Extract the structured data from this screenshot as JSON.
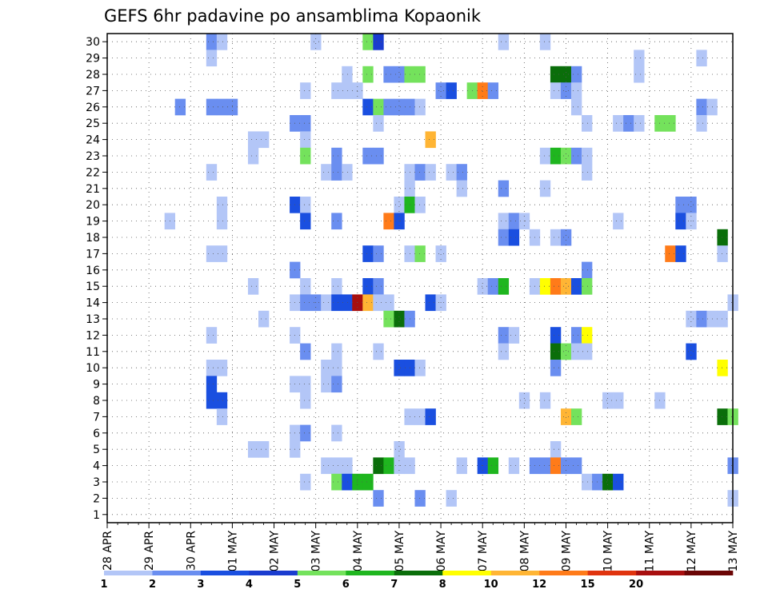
{
  "chart_data": {
    "type": "heatmap",
    "title": "GEFS 6hr padavine po ansamblima Kopaonik",
    "xlabel": "",
    "ylabel": "",
    "x_tick_labels": [
      "28 APR",
      "29 APR",
      "30 APR",
      "01 MAY",
      "02 MAY",
      "03 MAY",
      "04 MAY",
      "05 MAY",
      "06 MAY",
      "07 MAY",
      "08 MAY",
      "09 MAY",
      "10 MAY",
      "11 MAY",
      "12 MAY",
      "13 MAY"
    ],
    "y_tick_labels": [
      "1",
      "2",
      "3",
      "4",
      "5",
      "6",
      "7",
      "8",
      "9",
      "10",
      "11",
      "12",
      "13",
      "14",
      "15",
      "16",
      "17",
      "18",
      "19",
      "20",
      "21",
      "22",
      "23",
      "24",
      "25",
      "26",
      "27",
      "28",
      "29",
      "30"
    ],
    "xlim_steps": [
      0,
      60
    ],
    "ylim": [
      0.5,
      30.5
    ],
    "grid": true,
    "time_step_hours": 6,
    "colorbar": {
      "labels": [
        "1",
        "2",
        "3",
        "4",
        "5",
        "6",
        "7",
        "8",
        "10",
        "12",
        "15",
        "20"
      ],
      "colors": [
        "#b3c6f7",
        "#6a8ef0",
        "#1a4fe0",
        "#1a3ccf",
        "#74e25c",
        "#1fb61f",
        "#0a6e0a",
        "#ffff00",
        "#ffb534",
        "#ff7b19",
        "#e0340f",
        "#a80f0f",
        "#6b0505"
      ]
    },
    "cells": [
      [
        10,
        30,
        2
      ],
      [
        11,
        30,
        1
      ],
      [
        20,
        30,
        1
      ],
      [
        25,
        30,
        5
      ],
      [
        26,
        30,
        4
      ],
      [
        38,
        30,
        1
      ],
      [
        42,
        30,
        1
      ],
      [
        10,
        29,
        1
      ],
      [
        51,
        29,
        1
      ],
      [
        57,
        29,
        1
      ],
      [
        23,
        28,
        1
      ],
      [
        25,
        28,
        5
      ],
      [
        27,
        28,
        2
      ],
      [
        28,
        28,
        2
      ],
      [
        29,
        28,
        5
      ],
      [
        30,
        28,
        5
      ],
      [
        43,
        28,
        7
      ],
      [
        44,
        28,
        7
      ],
      [
        45,
        28,
        2
      ],
      [
        51,
        28,
        1
      ],
      [
        19,
        27,
        1
      ],
      [
        22,
        27,
        1
      ],
      [
        23,
        27,
        1
      ],
      [
        24,
        27,
        1
      ],
      [
        32,
        27,
        2
      ],
      [
        33,
        27,
        3
      ],
      [
        35,
        27,
        5
      ],
      [
        36,
        27,
        10
      ],
      [
        37,
        27,
        2
      ],
      [
        43,
        27,
        1
      ],
      [
        44,
        27,
        2
      ],
      [
        45,
        27,
        1
      ],
      [
        7,
        26,
        2
      ],
      [
        10,
        26,
        2
      ],
      [
        11,
        26,
        2
      ],
      [
        12,
        26,
        2
      ],
      [
        25,
        26,
        3
      ],
      [
        26,
        26,
        5
      ],
      [
        27,
        26,
        2
      ],
      [
        28,
        26,
        2
      ],
      [
        29,
        26,
        2
      ],
      [
        30,
        26,
        1
      ],
      [
        45,
        26,
        1
      ],
      [
        57,
        26,
        2
      ],
      [
        58,
        26,
        1
      ],
      [
        18,
        25,
        2
      ],
      [
        19,
        25,
        2
      ],
      [
        26,
        25,
        1
      ],
      [
        46,
        25,
        1
      ],
      [
        49,
        25,
        1
      ],
      [
        50,
        25,
        2
      ],
      [
        51,
        25,
        1
      ],
      [
        53,
        25,
        5
      ],
      [
        54,
        25,
        5
      ],
      [
        57,
        25,
        1
      ],
      [
        14,
        24,
        1
      ],
      [
        15,
        24,
        1
      ],
      [
        19,
        24,
        1
      ],
      [
        31,
        24,
        9
      ],
      [
        14,
        23,
        1
      ],
      [
        19,
        23,
        5
      ],
      [
        22,
        23,
        2
      ],
      [
        25,
        23,
        2
      ],
      [
        26,
        23,
        2
      ],
      [
        42,
        23,
        1
      ],
      [
        43,
        23,
        6
      ],
      [
        44,
        23,
        5
      ],
      [
        45,
        23,
        2
      ],
      [
        46,
        23,
        1
      ],
      [
        10,
        22,
        1
      ],
      [
        21,
        22,
        1
      ],
      [
        22,
        22,
        2
      ],
      [
        23,
        22,
        1
      ],
      [
        29,
        22,
        1
      ],
      [
        30,
        22,
        2
      ],
      [
        31,
        22,
        1
      ],
      [
        33,
        22,
        1
      ],
      [
        34,
        22,
        2
      ],
      [
        46,
        22,
        1
      ],
      [
        29,
        21,
        1
      ],
      [
        34,
        21,
        1
      ],
      [
        38,
        21,
        2
      ],
      [
        42,
        21,
        1
      ],
      [
        11,
        20,
        1
      ],
      [
        18,
        20,
        3
      ],
      [
        19,
        20,
        1
      ],
      [
        28,
        20,
        1
      ],
      [
        29,
        20,
        6
      ],
      [
        30,
        20,
        1
      ],
      [
        55,
        20,
        2
      ],
      [
        56,
        20,
        2
      ],
      [
        6,
        19,
        1
      ],
      [
        11,
        19,
        1
      ],
      [
        19,
        19,
        3
      ],
      [
        22,
        19,
        2
      ],
      [
        27,
        19,
        10
      ],
      [
        28,
        19,
        3
      ],
      [
        38,
        19,
        1
      ],
      [
        39,
        19,
        2
      ],
      [
        40,
        19,
        1
      ],
      [
        49,
        19,
        1
      ],
      [
        55,
        19,
        3
      ],
      [
        56,
        19,
        1
      ],
      [
        38,
        18,
        2
      ],
      [
        39,
        18,
        3
      ],
      [
        41,
        18,
        1
      ],
      [
        43,
        18,
        1
      ],
      [
        44,
        18,
        2
      ],
      [
        59,
        18,
        7
      ],
      [
        10,
        17,
        1
      ],
      [
        11,
        17,
        1
      ],
      [
        25,
        17,
        3
      ],
      [
        26,
        17,
        2
      ],
      [
        29,
        17,
        1
      ],
      [
        30,
        17,
        5
      ],
      [
        32,
        17,
        1
      ],
      [
        54,
        17,
        10
      ],
      [
        55,
        17,
        3
      ],
      [
        59,
        17,
        1
      ],
      [
        18,
        16,
        2
      ],
      [
        46,
        16,
        2
      ],
      [
        14,
        15,
        1
      ],
      [
        19,
        15,
        1
      ],
      [
        22,
        15,
        1
      ],
      [
        25,
        15,
        3
      ],
      [
        26,
        15,
        2
      ],
      [
        36,
        15,
        1
      ],
      [
        37,
        15,
        2
      ],
      [
        38,
        15,
        6
      ],
      [
        41,
        15,
        1
      ],
      [
        42,
        15,
        8
      ],
      [
        43,
        15,
        10
      ],
      [
        44,
        15,
        9
      ],
      [
        45,
        15,
        3
      ],
      [
        46,
        15,
        5
      ],
      [
        18,
        14,
        1
      ],
      [
        19,
        14,
        2
      ],
      [
        20,
        14,
        2
      ],
      [
        21,
        14,
        1
      ],
      [
        22,
        14,
        3
      ],
      [
        23,
        14,
        3
      ],
      [
        24,
        14,
        12
      ],
      [
        25,
        14,
        9
      ],
      [
        26,
        14,
        1
      ],
      [
        27,
        14,
        1
      ],
      [
        31,
        14,
        3
      ],
      [
        32,
        14,
        1
      ],
      [
        60,
        14,
        1
      ],
      [
        15,
        13,
        1
      ],
      [
        27,
        13,
        5
      ],
      [
        28,
        13,
        7
      ],
      [
        29,
        13,
        2
      ],
      [
        56,
        13,
        1
      ],
      [
        57,
        13,
        2
      ],
      [
        58,
        13,
        1
      ],
      [
        59,
        13,
        1
      ],
      [
        10,
        12,
        1
      ],
      [
        18,
        12,
        1
      ],
      [
        38,
        12,
        2
      ],
      [
        39,
        12,
        1
      ],
      [
        43,
        12,
        3
      ],
      [
        45,
        12,
        2
      ],
      [
        46,
        12,
        8
      ],
      [
        19,
        11,
        2
      ],
      [
        22,
        11,
        1
      ],
      [
        26,
        11,
        1
      ],
      [
        38,
        11,
        1
      ],
      [
        43,
        11,
        7
      ],
      [
        44,
        11,
        5
      ],
      [
        45,
        11,
        1
      ],
      [
        46,
        11,
        1
      ],
      [
        56,
        11,
        3
      ],
      [
        10,
        10,
        1
      ],
      [
        11,
        10,
        1
      ],
      [
        21,
        10,
        1
      ],
      [
        22,
        10,
        1
      ],
      [
        28,
        10,
        3
      ],
      [
        29,
        10,
        3
      ],
      [
        30,
        10,
        1
      ],
      [
        43,
        10,
        2
      ],
      [
        59,
        10,
        8
      ],
      [
        10,
        9,
        3
      ],
      [
        18,
        9,
        1
      ],
      [
        19,
        9,
        1
      ],
      [
        21,
        9,
        1
      ],
      [
        22,
        9,
        2
      ],
      [
        10,
        8,
        3
      ],
      [
        11,
        8,
        3
      ],
      [
        19,
        8,
        1
      ],
      [
        40,
        8,
        1
      ],
      [
        42,
        8,
        1
      ],
      [
        48,
        8,
        1
      ],
      [
        49,
        8,
        1
      ],
      [
        53,
        8,
        1
      ],
      [
        11,
        7,
        1
      ],
      [
        29,
        7,
        1
      ],
      [
        30,
        7,
        1
      ],
      [
        31,
        7,
        3
      ],
      [
        44,
        7,
        9
      ],
      [
        45,
        7,
        5
      ],
      [
        59,
        7,
        7
      ],
      [
        60,
        7,
        5
      ],
      [
        18,
        6,
        1
      ],
      [
        19,
        6,
        2
      ],
      [
        22,
        6,
        1
      ],
      [
        14,
        5,
        1
      ],
      [
        15,
        5,
        1
      ],
      [
        18,
        5,
        1
      ],
      [
        28,
        5,
        1
      ],
      [
        43,
        5,
        1
      ],
      [
        21,
        4,
        1
      ],
      [
        22,
        4,
        1
      ],
      [
        23,
        4,
        1
      ],
      [
        26,
        4,
        7
      ],
      [
        27,
        4,
        6
      ],
      [
        28,
        4,
        1
      ],
      [
        29,
        4,
        1
      ],
      [
        34,
        4,
        1
      ],
      [
        36,
        4,
        3
      ],
      [
        37,
        4,
        6
      ],
      [
        39,
        4,
        1
      ],
      [
        41,
        4,
        2
      ],
      [
        42,
        4,
        2
      ],
      [
        43,
        4,
        10
      ],
      [
        44,
        4,
        2
      ],
      [
        45,
        4,
        2
      ],
      [
        60,
        4,
        2
      ],
      [
        19,
        3,
        1
      ],
      [
        22,
        3,
        5
      ],
      [
        23,
        3,
        3
      ],
      [
        24,
        3,
        6
      ],
      [
        25,
        3,
        6
      ],
      [
        46,
        3,
        1
      ],
      [
        47,
        3,
        2
      ],
      [
        48,
        3,
        7
      ],
      [
        49,
        3,
        3
      ],
      [
        26,
        2,
        2
      ],
      [
        30,
        2,
        2
      ],
      [
        33,
        2,
        1
      ],
      [
        60,
        2,
        1
      ]
    ]
  }
}
